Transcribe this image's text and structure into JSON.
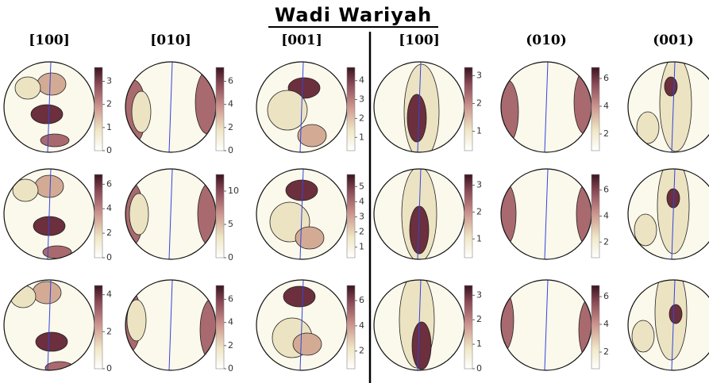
{
  "title": "Wadi Wariyah",
  "columns": [
    "[100]",
    "[010]",
    "[001]",
    "[100]",
    "(010)",
    "(001)"
  ],
  "colorbars": [
    [
      {
        "range": [
          0,
          3.6
        ],
        "ticks": [
          0,
          1,
          2,
          3
        ]
      },
      {
        "range": [
          0,
          7.2
        ],
        "ticks": [
          0,
          2,
          4,
          6
        ]
      },
      {
        "range": [
          0.3,
          4.7
        ],
        "ticks": [
          1,
          2,
          3,
          4
        ]
      },
      {
        "range": [
          0.3,
          3.3
        ],
        "ticks": [
          1,
          2,
          3
        ]
      },
      {
        "range": [
          0.8,
          6.8
        ],
        "ticks": [
          2,
          4,
          6
        ]
      }
    ],
    [
      {
        "range": [
          0,
          6.8
        ],
        "ticks": [
          0,
          2,
          4,
          6
        ]
      },
      {
        "range": [
          0,
          12.5
        ],
        "ticks": [
          0,
          5,
          10
        ]
      },
      {
        "range": [
          0.3,
          5.8
        ],
        "ticks": [
          1,
          2,
          3,
          4,
          5
        ]
      },
      {
        "range": [
          0.3,
          3.4
        ],
        "ticks": [
          1,
          2,
          3
        ]
      },
      {
        "range": [
          0.8,
          7.2
        ],
        "ticks": [
          2,
          4,
          6
        ]
      }
    ],
    [
      {
        "range": [
          0,
          4.5
        ],
        "ticks": [
          0,
          2,
          4
        ]
      },
      {
        "range": [
          0,
          7.2
        ],
        "ticks": [
          0,
          2,
          4,
          6
        ]
      },
      {
        "range": [
          0.6,
          7.2
        ],
        "ticks": [
          2,
          4,
          6
        ]
      },
      {
        "range": [
          0,
          3.4
        ],
        "ticks": [
          0,
          1,
          2,
          3
        ]
      },
      {
        "range": [
          0.8,
          6.8
        ],
        "ticks": [
          2,
          4,
          6
        ]
      }
    ]
  ]
}
